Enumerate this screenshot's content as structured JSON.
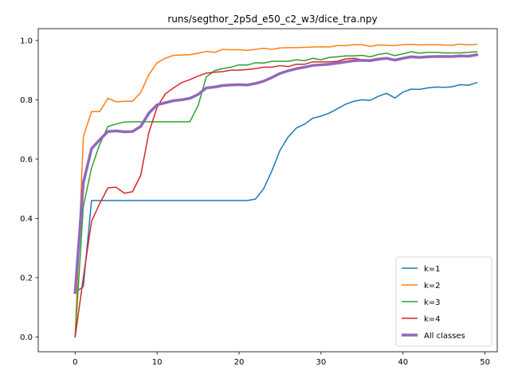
{
  "chart_data": {
    "type": "line",
    "title": "runs/segthor_2p5d_e50_c2_w3/dice_tra.npy",
    "xlabel": "",
    "ylabel": "",
    "xlim": [
      -4.5,
      51.5
    ],
    "ylim": [
      -0.05,
      1.04
    ],
    "xticks": [
      0,
      10,
      20,
      30,
      40,
      50
    ],
    "yticks": [
      0.0,
      0.2,
      0.4,
      0.6,
      0.8,
      1.0
    ],
    "xtick_labels": [
      "0",
      "10",
      "20",
      "30",
      "40",
      "50"
    ],
    "ytick_labels": [
      "0.0",
      "0.2",
      "0.4",
      "0.6",
      "0.8",
      "1.0"
    ],
    "grid": false,
    "legend_position": "lower-right",
    "x": [
      0,
      1,
      2,
      3,
      4,
      5,
      6,
      7,
      8,
      9,
      10,
      11,
      12,
      13,
      14,
      15,
      16,
      17,
      18,
      19,
      20,
      21,
      22,
      23,
      24,
      25,
      26,
      27,
      28,
      29,
      30,
      31,
      32,
      33,
      34,
      35,
      36,
      37,
      38,
      39,
      40,
      41,
      42,
      43,
      44,
      45,
      46,
      47,
      48,
      49
    ],
    "series": [
      {
        "name": "k=1",
        "color": "#1f77b4",
        "width": 1.5,
        "values": [
          0.15,
          0.17,
          0.46,
          0.46,
          0.46,
          0.46,
          0.46,
          0.46,
          0.46,
          0.46,
          0.46,
          0.46,
          0.46,
          0.46,
          0.46,
          0.46,
          0.46,
          0.46,
          0.46,
          0.46,
          0.46,
          0.46,
          0.465,
          0.5,
          0.56,
          0.63,
          0.675,
          0.705,
          0.718,
          0.738,
          0.745,
          0.755,
          0.77,
          0.785,
          0.795,
          0.8,
          0.798,
          0.812,
          0.822,
          0.806,
          0.826,
          0.836,
          0.835,
          0.84,
          0.843,
          0.842,
          0.844,
          0.851,
          0.849,
          0.858
        ]
      },
      {
        "name": "k=2",
        "color": "#ff7f0e",
        "width": 1.5,
        "values": [
          0.0,
          0.675,
          0.76,
          0.76,
          0.805,
          0.793,
          0.795,
          0.795,
          0.825,
          0.885,
          0.925,
          0.94,
          0.95,
          0.951,
          0.952,
          0.957,
          0.963,
          0.96,
          0.97,
          0.969,
          0.969,
          0.967,
          0.97,
          0.974,
          0.97,
          0.975,
          0.976,
          0.976,
          0.977,
          0.978,
          0.979,
          0.978,
          0.983,
          0.983,
          0.986,
          0.986,
          0.98,
          0.985,
          0.984,
          0.983,
          0.986,
          0.987,
          0.985,
          0.986,
          0.986,
          0.985,
          0.984,
          0.988,
          0.985,
          0.987
        ]
      },
      {
        "name": "k=3",
        "color": "#2ca02c",
        "width": 1.5,
        "values": [
          0.0,
          0.44,
          0.57,
          0.65,
          0.71,
          0.718,
          0.725,
          0.726,
          0.726,
          0.726,
          0.726,
          0.726,
          0.726,
          0.726,
          0.726,
          0.78,
          0.877,
          0.898,
          0.905,
          0.91,
          0.918,
          0.917,
          0.925,
          0.924,
          0.93,
          0.93,
          0.93,
          0.935,
          0.932,
          0.94,
          0.935,
          0.943,
          0.945,
          0.948,
          0.948,
          0.95,
          0.945,
          0.953,
          0.957,
          0.949,
          0.955,
          0.962,
          0.957,
          0.96,
          0.96,
          0.958,
          0.958,
          0.958,
          0.96,
          0.962
        ]
      },
      {
        "name": "k=4",
        "color": "#d62728",
        "width": 1.5,
        "values": [
          0.0,
          0.2,
          0.39,
          0.45,
          0.503,
          0.505,
          0.485,
          0.49,
          0.545,
          0.69,
          0.775,
          0.82,
          0.84,
          0.858,
          0.868,
          0.88,
          0.89,
          0.893,
          0.895,
          0.9,
          0.9,
          0.902,
          0.905,
          0.91,
          0.91,
          0.915,
          0.912,
          0.92,
          0.92,
          0.928,
          0.928,
          0.928,
          0.93,
          0.938,
          0.94,
          0.935,
          0.935,
          0.94,
          0.94,
          0.935,
          0.94,
          0.945,
          0.945,
          0.945,
          0.945,
          0.945,
          0.945,
          0.948,
          0.948,
          0.953
        ]
      },
      {
        "name": "All classes",
        "color": "#9467bd",
        "width": 3.5,
        "values": [
          0.15,
          0.52,
          0.635,
          0.665,
          0.693,
          0.695,
          0.692,
          0.693,
          0.71,
          0.755,
          0.783,
          0.79,
          0.797,
          0.8,
          0.805,
          0.818,
          0.84,
          0.843,
          0.848,
          0.85,
          0.851,
          0.85,
          0.855,
          0.863,
          0.875,
          0.889,
          0.898,
          0.905,
          0.91,
          0.916,
          0.918,
          0.92,
          0.924,
          0.928,
          0.932,
          0.933,
          0.932,
          0.937,
          0.94,
          0.934,
          0.94,
          0.945,
          0.943,
          0.945,
          0.946,
          0.946,
          0.946,
          0.948,
          0.947,
          0.952
        ]
      }
    ]
  }
}
